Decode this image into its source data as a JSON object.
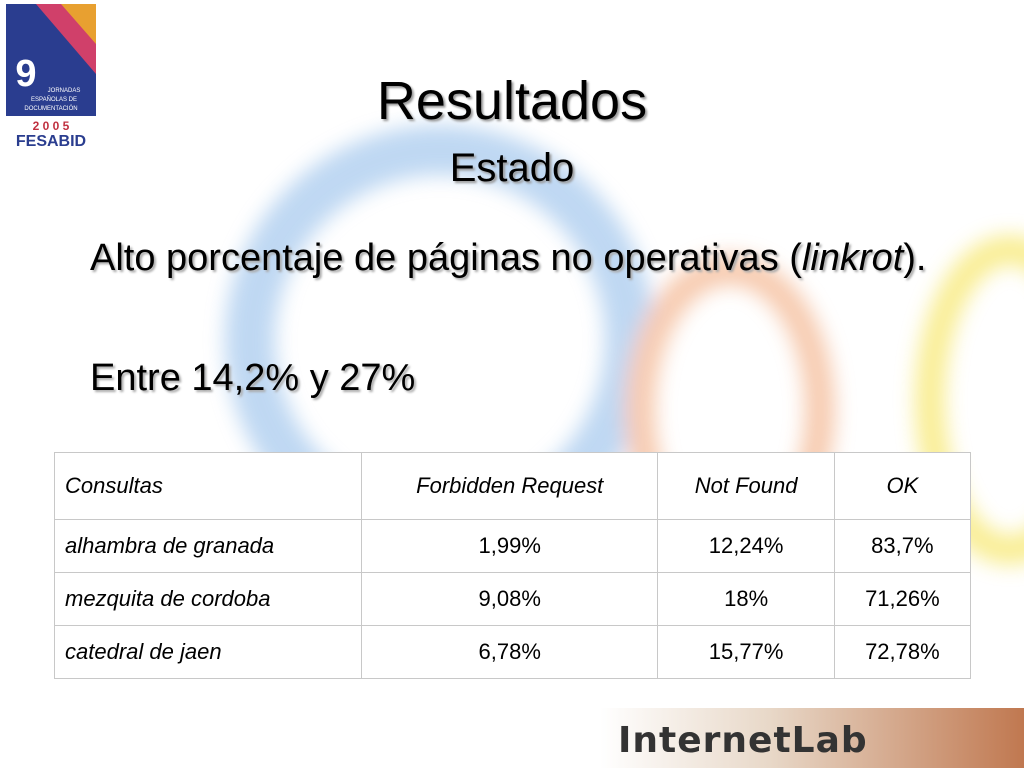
{
  "logo": {
    "number": "9",
    "lines": [
      "JORNADAS",
      "ESPAÑOLAS DE",
      "DOCUMENTACIÓN"
    ],
    "year": "2 0 0 5",
    "org": "FESABID"
  },
  "slide": {
    "title": "Resultados",
    "subtitle": "Estado",
    "bullets": [
      {
        "parts": [
          "Alto porcentaje de páginas no operativas (",
          "linkrot",
          ")."
        ]
      },
      {
        "parts": [
          "Entre 14,2% y 27%"
        ]
      }
    ]
  },
  "table": {
    "header": [
      "Consultas",
      "Forbidden Request",
      "Not Found",
      "OK"
    ],
    "rows": [
      [
        "alhambra de granada",
        "1,99%",
        "12,24%",
        "83,7%"
      ],
      [
        "mezquita de cordoba",
        "9,08%",
        "18%",
        "71,26%"
      ],
      [
        "catedral de jaen",
        "6,78%",
        "15,77%",
        "72,78%"
      ]
    ]
  },
  "footer": {
    "brand": "InternetLab"
  }
}
